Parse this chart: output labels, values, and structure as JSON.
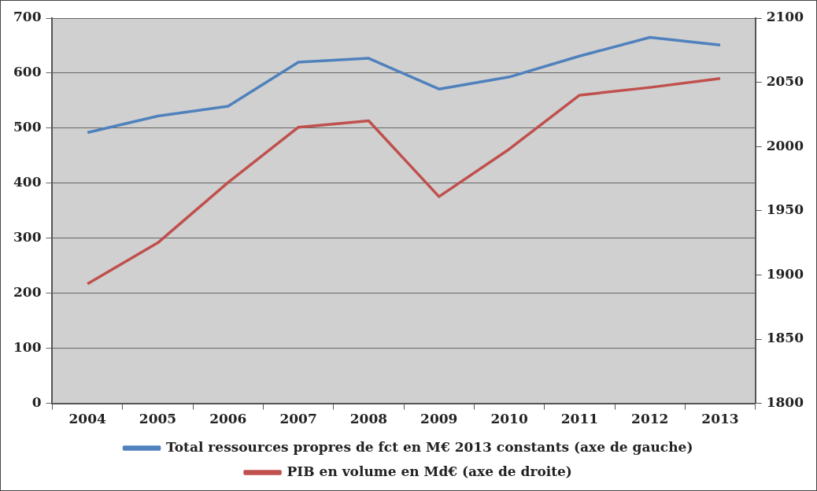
{
  "chart_data": {
    "type": "line",
    "categories": [
      "2004",
      "2005",
      "2006",
      "2007",
      "2008",
      "2009",
      "2010",
      "2011",
      "2012",
      "2013"
    ],
    "series": [
      {
        "name": "Total ressources propres de fct en M€ 2013 constants (axe de gauche)",
        "color": "#4f81bd",
        "values": [
          492,
          522,
          540,
          620,
          627,
          571,
          593,
          631,
          665,
          651
        ]
      },
      {
        "name": "PIB en volume en Md€ (axe de droite)",
        "color": "#c0504d",
        "axis": "y2",
        "values": [
          1893,
          1925,
          1972,
          2015,
          2020,
          1961,
          1998,
          2040,
          2046,
          2053
        ]
      }
    ],
    "ylim": [
      0,
      700
    ],
    "yticks": [
      0,
      100,
      200,
      300,
      400,
      500,
      600,
      700
    ],
    "y2lim": [
      1800,
      2100
    ],
    "y2ticks": [
      1800,
      1850,
      1900,
      1950,
      2000,
      2050,
      2100
    ],
    "grid": "y",
    "legend": "bottom",
    "marker": "none",
    "line_style": "solid"
  }
}
